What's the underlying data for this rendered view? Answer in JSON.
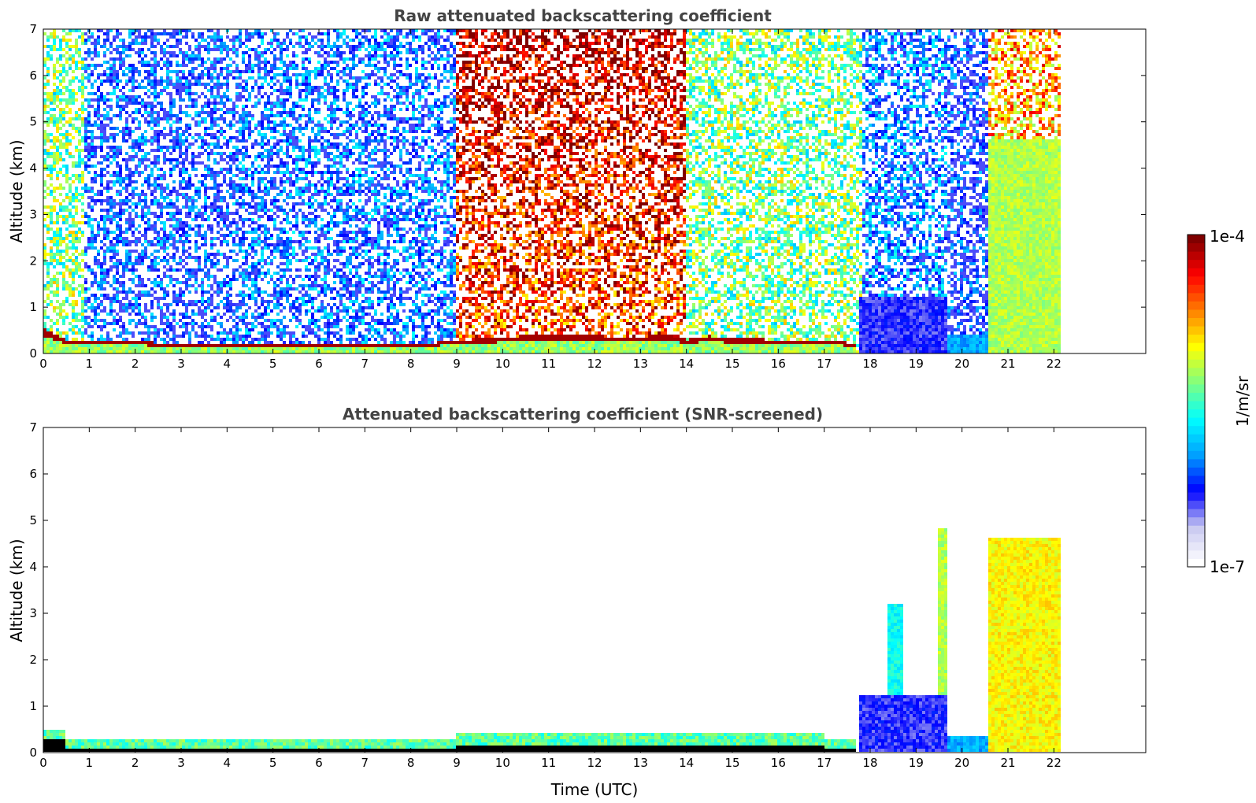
{
  "chart_data": [
    {
      "type": "heatmap",
      "title": "Raw attenuated backscattering coefficient",
      "ylabel": "Altitude (km)",
      "xlabel": "",
      "x_ticks": [
        "0",
        "1",
        "2",
        "3",
        "4",
        "5",
        "6",
        "7",
        "8",
        "9",
        "10",
        "11",
        "12",
        "13",
        "14",
        "15",
        "16",
        "17",
        "18",
        "19",
        "20",
        "21",
        "22"
      ],
      "y_ticks": [
        "0",
        "1",
        "2",
        "3",
        "4",
        "5",
        "6",
        "7"
      ],
      "xlim": [
        0,
        24
      ],
      "ylim": [
        0,
        7
      ],
      "data_end_time": 22.2,
      "grid": false,
      "features": {
        "boundary_layer_top_km": [
          {
            "t": 0.0,
            "h": 0.55
          },
          {
            "t": 0.5,
            "h": 0.3
          },
          {
            "t": 1,
            "h": 0.28
          },
          {
            "t": 2,
            "h": 0.25
          },
          {
            "t": 3,
            "h": 0.22
          },
          {
            "t": 4,
            "h": 0.22
          },
          {
            "t": 5,
            "h": 0.2
          },
          {
            "t": 6,
            "h": 0.2
          },
          {
            "t": 7,
            "h": 0.18
          },
          {
            "t": 8,
            "h": 0.18
          },
          {
            "t": 9,
            "h": 0.28
          },
          {
            "t": 10,
            "h": 0.35
          },
          {
            "t": 11,
            "h": 0.42
          },
          {
            "t": 12,
            "h": 0.38
          },
          {
            "t": 13,
            "h": 0.35
          },
          {
            "t": 13.5,
            "h": 0.42
          },
          {
            "t": 14,
            "h": 0.3
          },
          {
            "t": 14.5,
            "h": 0.38
          },
          {
            "t": 15,
            "h": 0.32
          },
          {
            "t": 16,
            "h": 0.3
          },
          {
            "t": 17,
            "h": 0.28
          },
          {
            "t": 17.7,
            "h": 0.22
          }
        ],
        "upper_signal": [
          {
            "t0": 0.0,
            "t1": 0.9,
            "level": 0.55
          },
          {
            "t0": 0.9,
            "t1": 4.3,
            "level": 0.25
          },
          {
            "t0": 4.3,
            "t1": 9.0,
            "level": 0.28
          },
          {
            "t0": 9.0,
            "t1": 14.0,
            "level": 0.82
          },
          {
            "t0": 14.0,
            "t1": 17.8,
            "level": 0.55
          },
          {
            "t0": 17.8,
            "t1": 19.7,
            "level": 0.3
          },
          {
            "t0": 19.7,
            "t1": 20.6,
            "level": 0.22
          },
          {
            "t0": 20.6,
            "t1": 22.2,
            "level": 0.62
          }
        ],
        "aerosol_layers": [
          {
            "t0": 17.75,
            "t1": 19.7,
            "h0": 0.0,
            "h1": 1.2,
            "level": 0.15
          },
          {
            "t0": 19.7,
            "t1": 20.6,
            "h0": 0.0,
            "h1": 0.4,
            "level": 0.3
          },
          {
            "t0": 20.6,
            "t1": 22.2,
            "h0": 0.0,
            "h1": 4.6,
            "level": 0.55
          }
        ]
      }
    },
    {
      "type": "heatmap",
      "title": "Attenuated backscattering coefficient (SNR-screened)",
      "ylabel": "Altitude (km)",
      "xlabel": "Time (UTC)",
      "x_ticks": [
        "0",
        "1",
        "2",
        "3",
        "4",
        "5",
        "6",
        "7",
        "8",
        "9",
        "10",
        "11",
        "12",
        "13",
        "14",
        "15",
        "16",
        "17",
        "18",
        "19",
        "20",
        "21",
        "22"
      ],
      "y_ticks": [
        "0",
        "1",
        "2",
        "3",
        "4",
        "5",
        "6",
        "7"
      ],
      "xlim": [
        0,
        24
      ],
      "ylim": [
        0,
        7
      ],
      "data_end_time": 22.2,
      "grid": false,
      "features": {
        "screened_layers": [
          {
            "t0": 17.75,
            "t1": 19.7,
            "h0": 0.0,
            "h1": 1.25,
            "level": 0.15
          },
          {
            "t0": 18.4,
            "t1": 18.7,
            "h0": 0.0,
            "h1": 3.2,
            "level": 0.4
          },
          {
            "t0": 19.5,
            "t1": 19.7,
            "h0": 0.0,
            "h1": 4.8,
            "level": 0.55
          },
          {
            "t0": 19.7,
            "t1": 20.6,
            "h0": 0.0,
            "h1": 0.35,
            "level": 0.3
          },
          {
            "t0": 20.6,
            "t1": 22.2,
            "h0": 0.0,
            "h1": 4.6,
            "level": 0.62
          }
        ]
      }
    }
  ],
  "colorbar": {
    "label": "1/m/sr",
    "max_label": "1e-4",
    "min_label": "1e-7",
    "colors": [
      "#ffffff",
      "#c8c8f0",
      "#0000ff",
      "#00a0ff",
      "#00ffff",
      "#80ff80",
      "#ffff00",
      "#ff8000",
      "#ff0000",
      "#800000"
    ]
  }
}
